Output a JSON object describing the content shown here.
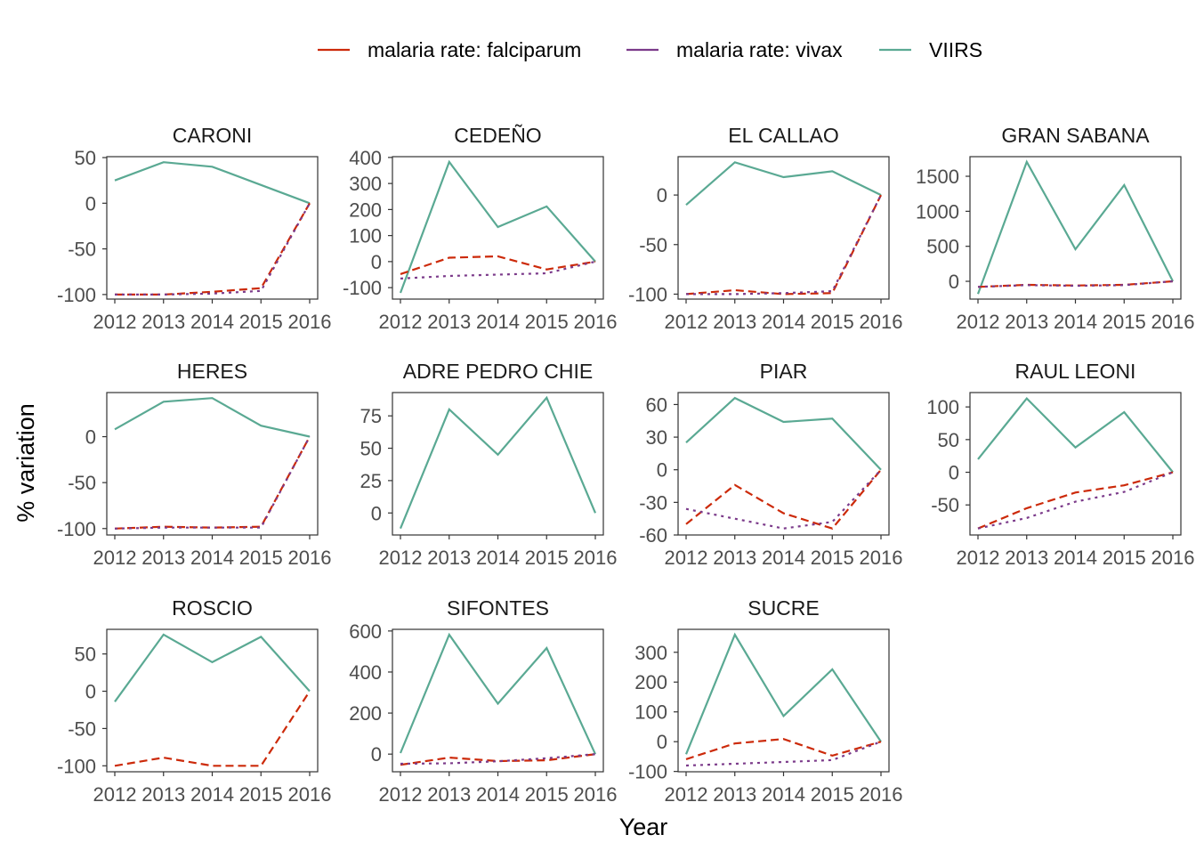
{
  "chart_data": {
    "type": "line",
    "xlabel": "Year",
    "ylabel": "% variation",
    "x": [
      2012,
      2013,
      2014,
      2015,
      2016
    ],
    "x_tick_labels": [
      "2012",
      "2013",
      "2014",
      "2015",
      "2016"
    ],
    "grid": false,
    "legend_position": "top",
    "legend": [
      {
        "name": "malaria rate: falciparum",
        "key": "falciparum",
        "color": "#cc2a0a",
        "dash": "dashed"
      },
      {
        "name": "malaria rate: vivax",
        "key": "vivax",
        "color": "#7b3a8a",
        "dash": "dotted"
      },
      {
        "name": "VIIRS",
        "key": "viirs",
        "color": "#5aa993",
        "dash": "solid"
      }
    ],
    "panels": [
      {
        "title": "CARONI",
        "ylim": [
          -105,
          51
        ],
        "yticks": [
          50,
          0,
          -50,
          -100
        ],
        "ytick_labels": [
          "50",
          "0",
          "-50",
          "-100"
        ],
        "series": {
          "falciparum": [
            -100,
            -100,
            -97,
            -93,
            0
          ],
          "vivax": [
            -100,
            -100,
            -99,
            -96,
            0
          ],
          "viirs": [
            25,
            45,
            40,
            20,
            0
          ]
        }
      },
      {
        "title": "CEDEÑO",
        "ylim": [
          -144,
          403
        ],
        "yticks": [
          400,
          300,
          200,
          100,
          0,
          -100
        ],
        "ytick_labels": [
          "400",
          "300",
          "200",
          "100",
          "0",
          "-100"
        ],
        "series": {
          "falciparum": [
            -48,
            15,
            20,
            -30,
            0
          ],
          "vivax": [
            -65,
            -55,
            -50,
            -45,
            0
          ],
          "viirs": [
            -120,
            383,
            133,
            212,
            0
          ]
        }
      },
      {
        "title": "EL CALLAO",
        "ylim": [
          -105,
          38.7
        ],
        "yticks": [
          0,
          -50,
          -100
        ],
        "ytick_labels": [
          "0",
          "-50",
          "-100"
        ],
        "series": {
          "falciparum": [
            -100,
            -96,
            -100,
            -99,
            0
          ],
          "vivax": [
            -100,
            -100,
            -99,
            -97,
            0
          ],
          "viirs": [
            -10,
            33,
            18,
            24,
            0
          ]
        }
      },
      {
        "title": "GRAN SABANA",
        "ylim": [
          -254,
          1780
        ],
        "yticks": [
          1500,
          1000,
          500,
          0
        ],
        "ytick_labels": [
          "1500",
          "1000",
          "500",
          "0"
        ],
        "series": {
          "falciparum": [
            -80,
            -50,
            -60,
            -50,
            0
          ],
          "vivax": [
            -80,
            -55,
            -65,
            -55,
            0
          ],
          "viirs": [
            -180,
            1705,
            458,
            1375,
            0
          ]
        }
      },
      {
        "title": "HERES",
        "ylim": [
          -107,
          48
        ],
        "yticks": [
          0,
          -50,
          -100
        ],
        "ytick_labels": [
          "0",
          "-50",
          "-100"
        ],
        "series": {
          "falciparum": [
            -100,
            -98,
            -99,
            -98,
            0
          ],
          "vivax": [
            -100,
            -99,
            -99,
            -99,
            0
          ],
          "viirs": [
            8,
            38,
            42,
            12,
            0
          ]
        }
      },
      {
        "title": "ADRE PEDRO CHIE",
        "ylim": [
          -17,
          93
        ],
        "yticks": [
          75,
          50,
          25,
          0
        ],
        "ytick_labels": [
          "75",
          "50",
          "25",
          "0"
        ],
        "series": {
          "viirs": [
            -12,
            80,
            45,
            89,
            0
          ]
        }
      },
      {
        "title": "PIAR",
        "ylim": [
          -60,
          71
        ],
        "yticks": [
          60,
          30,
          0,
          -30,
          -60
        ],
        "ytick_labels": [
          "60",
          "30",
          "0",
          "-30",
          "-60"
        ],
        "series": {
          "falciparum": [
            -50,
            -14,
            -40,
            -54,
            0
          ],
          "vivax": [
            -36,
            -45,
            -54,
            -48,
            0
          ],
          "viirs": [
            25,
            66,
            44,
            47,
            0
          ]
        }
      },
      {
        "title": "RAUL LEONI",
        "ylim": [
          -96,
          122
        ],
        "yticks": [
          100,
          50,
          0,
          -50
        ],
        "ytick_labels": [
          "100",
          "50",
          "0",
          "-50"
        ],
        "series": {
          "falciparum": [
            -86,
            -55,
            -31,
            -20,
            0
          ],
          "vivax": [
            -86,
            -70,
            -45,
            -30,
            0
          ],
          "viirs": [
            20,
            113,
            38,
            92,
            0
          ]
        }
      },
      {
        "title": "ROSCIO",
        "ylim": [
          -108,
          83
        ],
        "yticks": [
          50,
          0,
          -50,
          -100
        ],
        "ytick_labels": [
          "50",
          "0",
          "-50",
          "-100"
        ],
        "series": {
          "falciparum": [
            -100,
            -89,
            -100,
            -100,
            0
          ],
          "viirs": [
            -14,
            76,
            39,
            73,
            0
          ]
        }
      },
      {
        "title": "SIFONTES",
        "ylim": [
          -86,
          608
        ],
        "yticks": [
          600,
          400,
          200,
          0
        ],
        "ytick_labels": [
          "600",
          "400",
          "200",
          "0"
        ],
        "series": {
          "falciparum": [
            -52,
            -17,
            -34,
            -30,
            0
          ],
          "vivax": [
            -47,
            -45,
            -35,
            -20,
            0
          ],
          "viirs": [
            5,
            582,
            246,
            517,
            0
          ]
        }
      },
      {
        "title": "SUCRE",
        "ylim": [
          -101,
          377
        ],
        "yticks": [
          300,
          200,
          100,
          0,
          -100
        ],
        "ytick_labels": [
          "300",
          "200",
          "100",
          "0",
          "-100"
        ],
        "series": {
          "falciparum": [
            -59,
            -6,
            9,
            -47,
            0
          ],
          "vivax": [
            -80,
            -74,
            -68,
            -62,
            0
          ],
          "viirs": [
            -42,
            359,
            86,
            243,
            0
          ]
        }
      }
    ]
  }
}
